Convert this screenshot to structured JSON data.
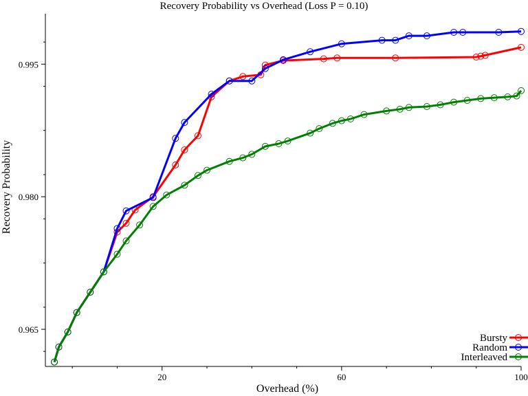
{
  "chart_data": {
    "type": "line",
    "title": "Recovery Probability vs Overhead (Loss P = 0.10)",
    "xlabel": "Overhead (%)",
    "ylabel": "Recovery Probability",
    "xlim": [
      -6,
      100
    ],
    "ylim": [
      0.9608,
      1.0007
    ],
    "x_ticks": [
      {
        "value": 20,
        "label": "20"
      },
      {
        "value": 60,
        "label": "60"
      },
      {
        "value": 100,
        "label": "100"
      }
    ],
    "x_minor_ticks": [
      0,
      10,
      30,
      40,
      50,
      70,
      80,
      90
    ],
    "y_ticks": [
      {
        "value": 0.965,
        "label": "0.965"
      },
      {
        "value": 0.98,
        "label": "0.980"
      },
      {
        "value": 0.995,
        "label": "0.995"
      }
    ],
    "y_minor_ticks": [
      0.9625,
      0.9675,
      0.9725,
      0.9775,
      0.9825,
      0.9875,
      0.9925,
      0.9975
    ],
    "legend_position": "bottom-right",
    "grid": false,
    "series": [
      {
        "name": "Bursty",
        "color": "#ff0000",
        "x": [
          -4,
          -3,
          -1,
          1,
          4,
          7,
          10,
          12,
          14,
          18,
          23,
          25,
          28,
          31,
          35,
          38,
          42,
          43,
          47,
          56,
          59,
          72,
          90,
          91,
          92,
          100
        ],
        "y": [
          0.9613,
          0.963,
          0.9647,
          0.9669,
          0.9692,
          0.9715,
          0.976,
          0.977,
          0.9785,
          0.98,
          0.9836,
          0.9853,
          0.9869,
          0.9913,
          0.9931,
          0.9936,
          0.9938,
          0.9949,
          0.9954,
          0.9956,
          0.9957,
          0.9957,
          0.9958,
          0.9959,
          0.996,
          0.9969
        ]
      },
      {
        "name": "Random",
        "color": "#0000ff",
        "x": [
          -4,
          -3,
          -1,
          1,
          4,
          7,
          10,
          12,
          18,
          23,
          25,
          31,
          35,
          40,
          43,
          47,
          53,
          60,
          69,
          72,
          75,
          79,
          85,
          87,
          95,
          100
        ],
        "y": [
          0.9613,
          0.963,
          0.9647,
          0.9669,
          0.9692,
          0.9715,
          0.9764,
          0.9784,
          0.9799,
          0.9866,
          0.9884,
          0.9916,
          0.9931,
          0.9931,
          0.9945,
          0.9955,
          0.9964,
          0.9973,
          0.9977,
          0.9977,
          0.9982,
          0.9982,
          0.9986,
          0.9986,
          0.9986,
          0.9987
        ]
      },
      {
        "name": "Interleaved",
        "color": "#007f00",
        "x": [
          -4,
          -3,
          -1,
          1,
          4,
          7,
          10,
          12,
          15,
          18,
          21,
          25,
          28,
          30,
          35,
          38,
          40,
          43,
          46,
          48,
          53,
          55,
          58,
          60,
          62,
          65,
          70,
          73,
          75,
          79,
          82,
          85,
          88,
          91,
          94,
          97,
          99,
          100
        ],
        "y": [
          0.9613,
          0.963,
          0.9647,
          0.9669,
          0.9692,
          0.9715,
          0.9735,
          0.975,
          0.9768,
          0.9789,
          0.9802,
          0.9813,
          0.9824,
          0.983,
          0.984,
          0.9844,
          0.9848,
          0.9857,
          0.986,
          0.9863,
          0.9872,
          0.9877,
          0.9883,
          0.9886,
          0.9888,
          0.9893,
          0.9897,
          0.9899,
          0.9901,
          0.9902,
          0.9904,
          0.9907,
          0.9909,
          0.9911,
          0.9912,
          0.9913,
          0.9914,
          0.992
        ]
      }
    ]
  }
}
